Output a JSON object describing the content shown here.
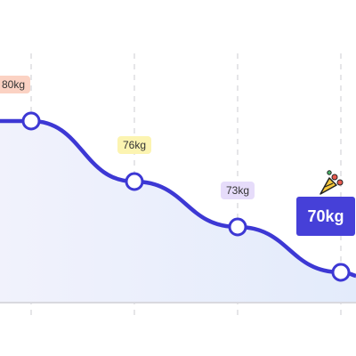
{
  "chart_data": {
    "type": "line",
    "categories": [
      null,
      null,
      null,
      null
    ],
    "series": [
      {
        "color": "#3d38d4",
        "values": [
          80,
          76,
          73,
          70
        ],
        "value_labels": [
          "80kg",
          "76kg",
          "73kg",
          "70kg"
        ]
      }
    ],
    "ylim": [
      68,
      88
    ],
    "grid": true
  }
}
